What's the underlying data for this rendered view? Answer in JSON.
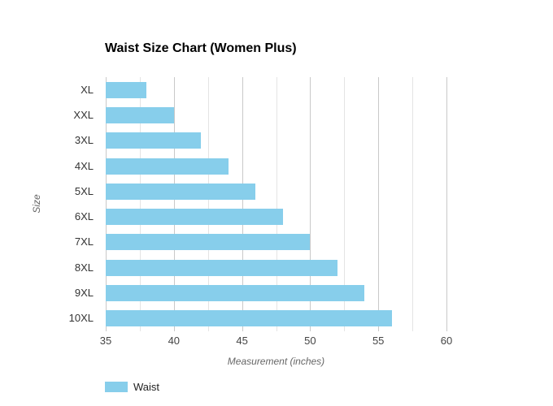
{
  "chart_data": {
    "type": "bar",
    "orientation": "horizontal",
    "title": "Waist Size Chart (Women Plus)",
    "categories": [
      "XL",
      "XXL",
      "3XL",
      "4XL",
      "5XL",
      "6XL",
      "7XL",
      "8XL",
      "9XL",
      "10XL"
    ],
    "series": [
      {
        "name": "Waist",
        "values": [
          38,
          40,
          42,
          44,
          46,
          48,
          50,
          52,
          54,
          56
        ]
      }
    ],
    "xlabel": "Measurement (inches)",
    "ylabel": "Size",
    "xlim": [
      35,
      60
    ],
    "x_ticks": [
      35,
      40,
      45,
      50,
      55,
      60
    ],
    "minor_gridline_step": 2.5,
    "grid": true,
    "legend_position": "bottom-left",
    "bar_color": "#87CEEB",
    "major_gridline_color": "#c9c9c9",
    "minor_gridline_color": "#e4e4e4",
    "background_color": "#ffffff"
  }
}
